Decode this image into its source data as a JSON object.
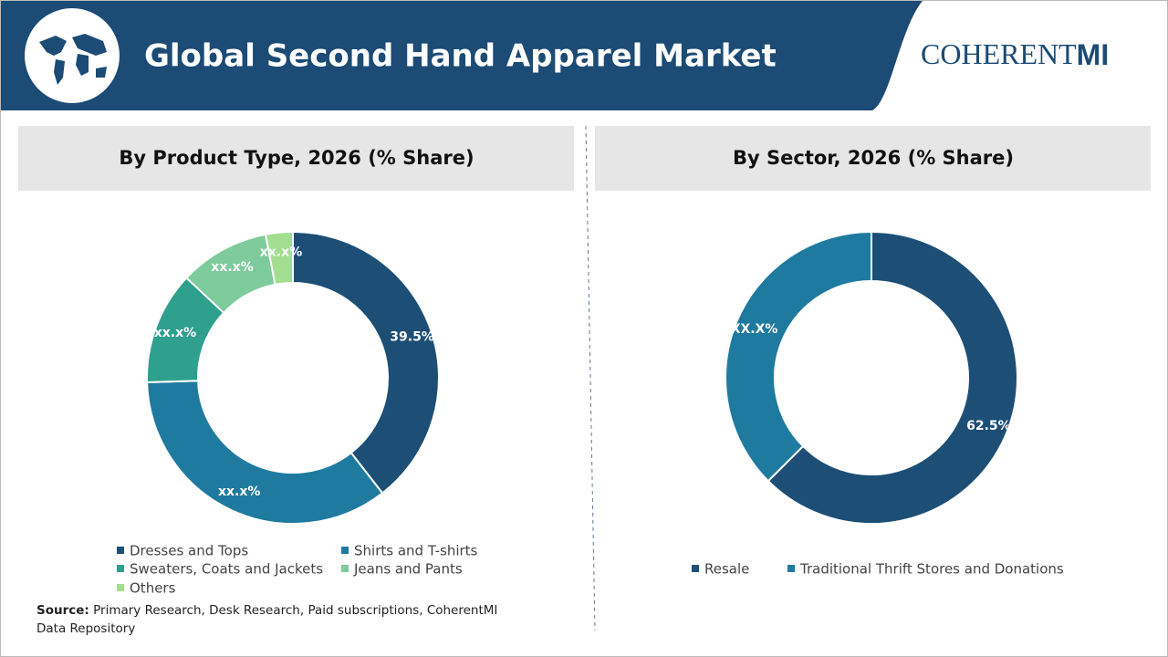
{
  "header": {
    "title": "Global Second Hand Apparel Market",
    "logo": [
      "COHERENT",
      "MI"
    ]
  },
  "chart_data": [
    {
      "type": "donut",
      "title": "By Product Type, 2026 (% Share)",
      "categories": [
        "Dresses and Tops",
        "Shirts and T-shirts",
        "Sweaters, Coats and Jackets",
        "Jeans and Pants",
        "Others"
      ],
      "values": [
        39.5,
        35,
        12.5,
        10,
        3
      ],
      "value_labels": [
        "39.5%",
        "xx.x%",
        "xx.x%",
        "xx.x%",
        "xx.x%"
      ],
      "colors": [
        "#1d4f76",
        "#1f7aa0",
        "#2fa08e",
        "#7ecb9b",
        "#a3dd8f"
      ]
    },
    {
      "type": "donut",
      "title": "By Sector, 2026 (% Share)",
      "categories": [
        "Resale",
        "Traditional Thrift Stores and Donations"
      ],
      "values": [
        62.5,
        37.5
      ],
      "value_labels": [
        "62.5%",
        "XX.X%"
      ],
      "colors": [
        "#1d4f76",
        "#1f7aa0"
      ]
    }
  ],
  "source": {
    "label": "Source:",
    "text": "Primary Research, Desk Research, Paid subscriptions, CoherentMI Data Repository"
  }
}
